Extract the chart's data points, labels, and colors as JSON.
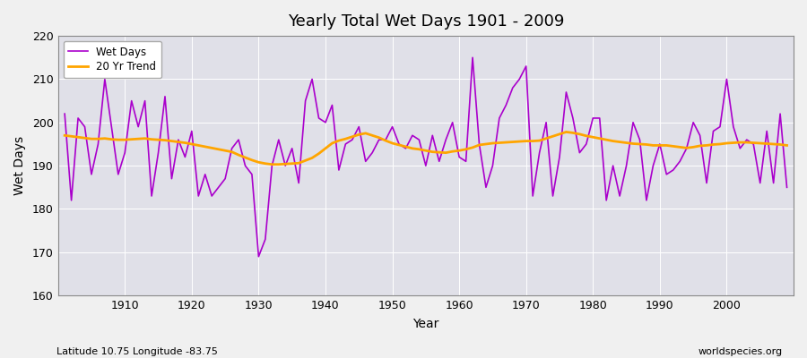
{
  "title": "Yearly Total Wet Days 1901 - 2009",
  "ylabel": "Wet Days",
  "xlabel": "Year",
  "lat_lon_label": "Latitude 10.75 Longitude -83.75",
  "watermark": "worldspecies.org",
  "wet_days_color": "#AA00CC",
  "trend_color": "#FFA500",
  "fig_background_color": "#F0F0F0",
  "plot_background_color": "#E0E0E8",
  "grid_color": "#FFFFFF",
  "ylim": [
    160,
    220
  ],
  "xlim": [
    1900,
    2010
  ],
  "yticks": [
    160,
    170,
    180,
    190,
    200,
    210,
    220
  ],
  "xticks": [
    1910,
    1920,
    1930,
    1940,
    1950,
    1960,
    1970,
    1980,
    1990,
    2000
  ],
  "years": [
    1901,
    1902,
    1903,
    1904,
    1905,
    1906,
    1907,
    1908,
    1909,
    1910,
    1911,
    1912,
    1913,
    1914,
    1915,
    1916,
    1917,
    1918,
    1919,
    1920,
    1921,
    1922,
    1923,
    1924,
    1925,
    1926,
    1927,
    1928,
    1929,
    1930,
    1931,
    1932,
    1933,
    1934,
    1935,
    1936,
    1937,
    1938,
    1939,
    1940,
    1941,
    1942,
    1943,
    1944,
    1945,
    1946,
    1947,
    1948,
    1949,
    1950,
    1951,
    1952,
    1953,
    1954,
    1955,
    1956,
    1957,
    1958,
    1959,
    1960,
    1961,
    1962,
    1963,
    1964,
    1965,
    1966,
    1967,
    1968,
    1969,
    1970,
    1971,
    1972,
    1973,
    1974,
    1975,
    1976,
    1977,
    1978,
    1979,
    1980,
    1981,
    1982,
    1983,
    1984,
    1985,
    1986,
    1987,
    1988,
    1989,
    1990,
    1991,
    1992,
    1993,
    1994,
    1995,
    1996,
    1997,
    1998,
    1999,
    2000,
    2001,
    2002,
    2003,
    2004,
    2005,
    2006,
    2007,
    2008,
    2009
  ],
  "wet_days": [
    202,
    182,
    201,
    199,
    188,
    195,
    210,
    199,
    188,
    193,
    205,
    199,
    205,
    183,
    193,
    206,
    187,
    196,
    192,
    198,
    183,
    188,
    183,
    185,
    187,
    194,
    196,
    190,
    188,
    169,
    173,
    190,
    196,
    190,
    194,
    186,
    205,
    210,
    201,
    200,
    204,
    189,
    195,
    196,
    199,
    191,
    193,
    196,
    196,
    199,
    195,
    194,
    197,
    196,
    190,
    197,
    191,
    196,
    200,
    192,
    191,
    215,
    195,
    185,
    190,
    201,
    204,
    208,
    210,
    213,
    183,
    193,
    200,
    183,
    192,
    207,
    201,
    193,
    195,
    201,
    201,
    182,
    190,
    183,
    190,
    200,
    196,
    182,
    190,
    195,
    188,
    189,
    191,
    194,
    200,
    197,
    186,
    198,
    199,
    210,
    199,
    194,
    196,
    195,
    186,
    198,
    186,
    202,
    185
  ],
  "trend": [
    197.0,
    196.8,
    196.6,
    196.4,
    196.2,
    196.2,
    196.3,
    196.1,
    196.0,
    196.0,
    196.1,
    196.2,
    196.3,
    196.1,
    196.0,
    195.9,
    195.7,
    195.5,
    195.3,
    195.0,
    194.7,
    194.4,
    194.1,
    193.8,
    193.5,
    193.2,
    192.5,
    191.9,
    191.3,
    190.8,
    190.5,
    190.3,
    190.3,
    190.4,
    190.5,
    190.6,
    191.2,
    191.8,
    192.8,
    194.0,
    195.2,
    195.8,
    196.2,
    196.7,
    197.2,
    197.5,
    197.0,
    196.5,
    195.8,
    195.2,
    194.8,
    194.4,
    194.0,
    193.8,
    193.5,
    193.2,
    193.1,
    193.0,
    193.3,
    193.5,
    193.8,
    194.2,
    194.8,
    195.0,
    195.2,
    195.3,
    195.4,
    195.5,
    195.6,
    195.7,
    195.7,
    195.8,
    196.3,
    196.8,
    197.3,
    197.8,
    197.6,
    197.3,
    196.9,
    196.6,
    196.3,
    196.0,
    195.7,
    195.5,
    195.3,
    195.1,
    195.0,
    194.9,
    194.7,
    194.7,
    194.7,
    194.5,
    194.3,
    194.1,
    194.3,
    194.6,
    194.7,
    194.9,
    195.0,
    195.2,
    195.3,
    195.4,
    195.4,
    195.3,
    195.2,
    195.1,
    195.0,
    194.9,
    194.7
  ]
}
